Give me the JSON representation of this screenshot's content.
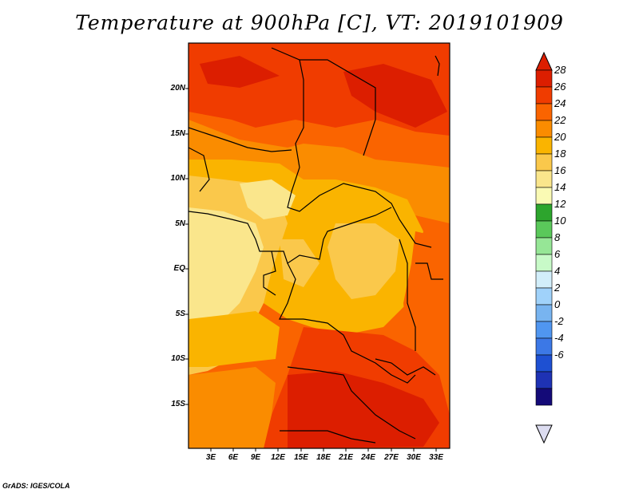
{
  "title": "Temperature at 900hPa [C], VT: 2019101909",
  "credit": "GrADS: IGES/COLA",
  "map": {
    "lat_labels": [
      "20N",
      "15N",
      "10N",
      "5N",
      "EQ",
      "5S",
      "10S",
      "15S"
    ],
    "lon_labels": [
      "3E",
      "6E",
      "9E",
      "12E",
      "15E",
      "18E",
      "21E",
      "24E",
      "27E",
      "30E",
      "33E"
    ]
  },
  "colorbar": {
    "labels": [
      "28",
      "26",
      "24",
      "22",
      "20",
      "18",
      "16",
      "14",
      "12",
      "10",
      "8",
      "6",
      "4",
      "2",
      "0",
      "-2",
      "-4",
      "-6"
    ],
    "colors": [
      "#dc1e00",
      "#f03c00",
      "#fa6400",
      "#fa8c00",
      "#fab400",
      "#fac84b",
      "#fae68c",
      "#fafab4",
      "#2da52d",
      "#5ac85a",
      "#96e696",
      "#c8fac8",
      "#d2eefa",
      "#a0d2fa",
      "#78b4f0",
      "#5096f0",
      "#3c78e6",
      "#1e50d2",
      "#1e32b4",
      "#140a78"
    ],
    "top_arrow_color": "#dc1e00",
    "bottom_arrow_color": "#dcdcf0"
  }
}
